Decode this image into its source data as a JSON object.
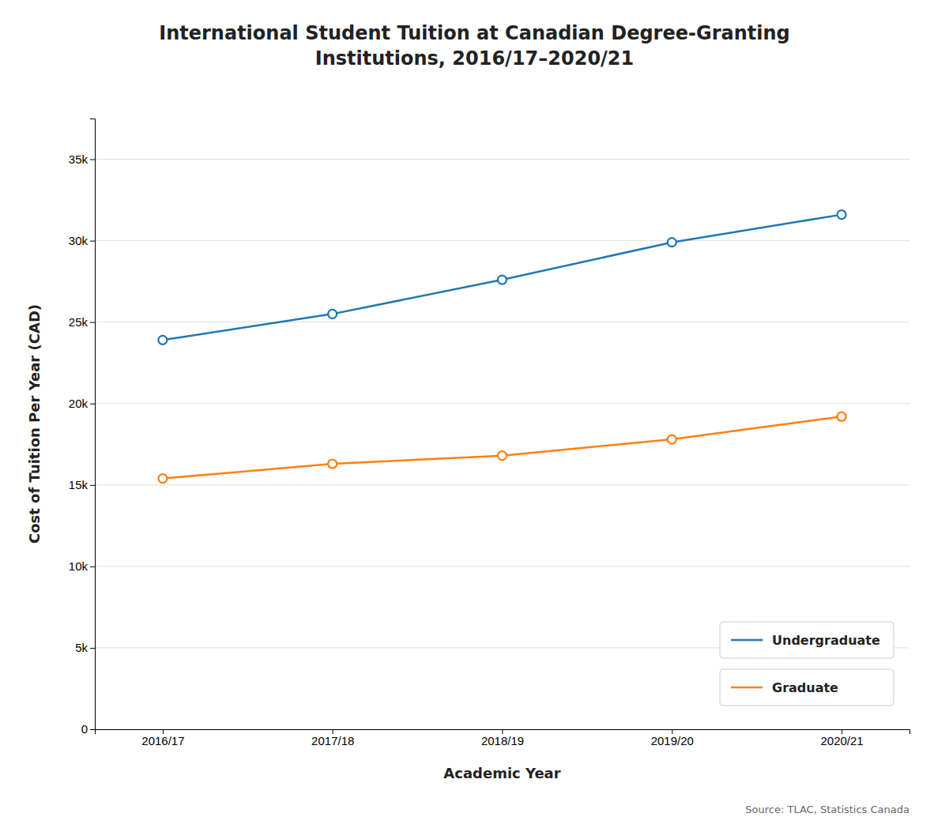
{
  "chart_data": {
    "type": "line",
    "title": "International Student Tuition at Canadian Degree-Granting\nInstitutions, 2016/17–2020/21",
    "xlabel": "Academic Year",
    "ylabel": "Cost of Tuition Per Year (CAD)",
    "categories": [
      "2016/17",
      "2017/18",
      "2018/19",
      "2019/20",
      "2020/21"
    ],
    "series": [
      {
        "name": "Undergraduate",
        "values": [
          23900,
          25500,
          27600,
          29900,
          31600
        ]
      },
      {
        "name": "Graduate",
        "values": [
          15400,
          16300,
          16800,
          17800,
          19200
        ]
      }
    ],
    "ylim": [
      0,
      37500
    ],
    "yticks": [
      0,
      {
        "value": 5000,
        "label": "5k"
      },
      {
        "value": 10000,
        "label": "10k"
      },
      {
        "value": 15000,
        "label": "15k"
      },
      {
        "value": 20000,
        "label": "20k"
      },
      {
        "value": 25000,
        "label": "25k"
      },
      {
        "value": 30000,
        "label": "30k"
      },
      {
        "value": 35000,
        "label": "35k"
      }
    ],
    "grid": true,
    "marker": "circle",
    "legend": "lower right",
    "annotations": [
      "Source: TLAC, Statistics Canada"
    ]
  }
}
